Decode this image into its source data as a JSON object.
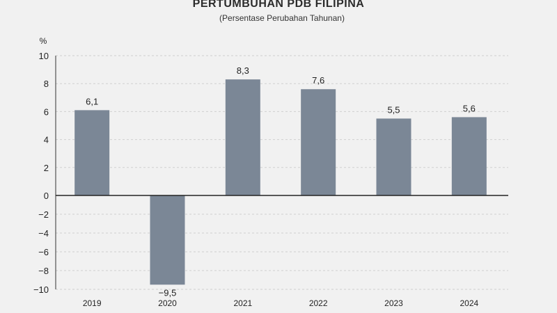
{
  "chart_data": {
    "type": "bar",
    "title": "PERTUMBUHAN PDB FILIPINA",
    "subtitle": "(Persentase Perubahan Tahunan)",
    "y_unit": "%",
    "categories": [
      "2019",
      "2020",
      "2021",
      "2022",
      "2023",
      "2024"
    ],
    "values": [
      6.1,
      -9.5,
      8.3,
      7.6,
      5.5,
      5.6
    ],
    "data_labels": [
      "6,1",
      "−9,5",
      "8,3",
      "7,6",
      "5,5",
      "5,6"
    ],
    "ylim": [
      -10,
      10
    ],
    "yticks": [
      10,
      8,
      6,
      4,
      2,
      0,
      -2,
      -4,
      -6,
      -8,
      -10
    ],
    "ytick_labels": [
      "10",
      "8",
      "6",
      "4",
      "2",
      "0",
      "−2",
      "−4",
      "−6",
      "−8",
      "−10"
    ],
    "grid": true,
    "bar_color": "#7b8796"
  }
}
